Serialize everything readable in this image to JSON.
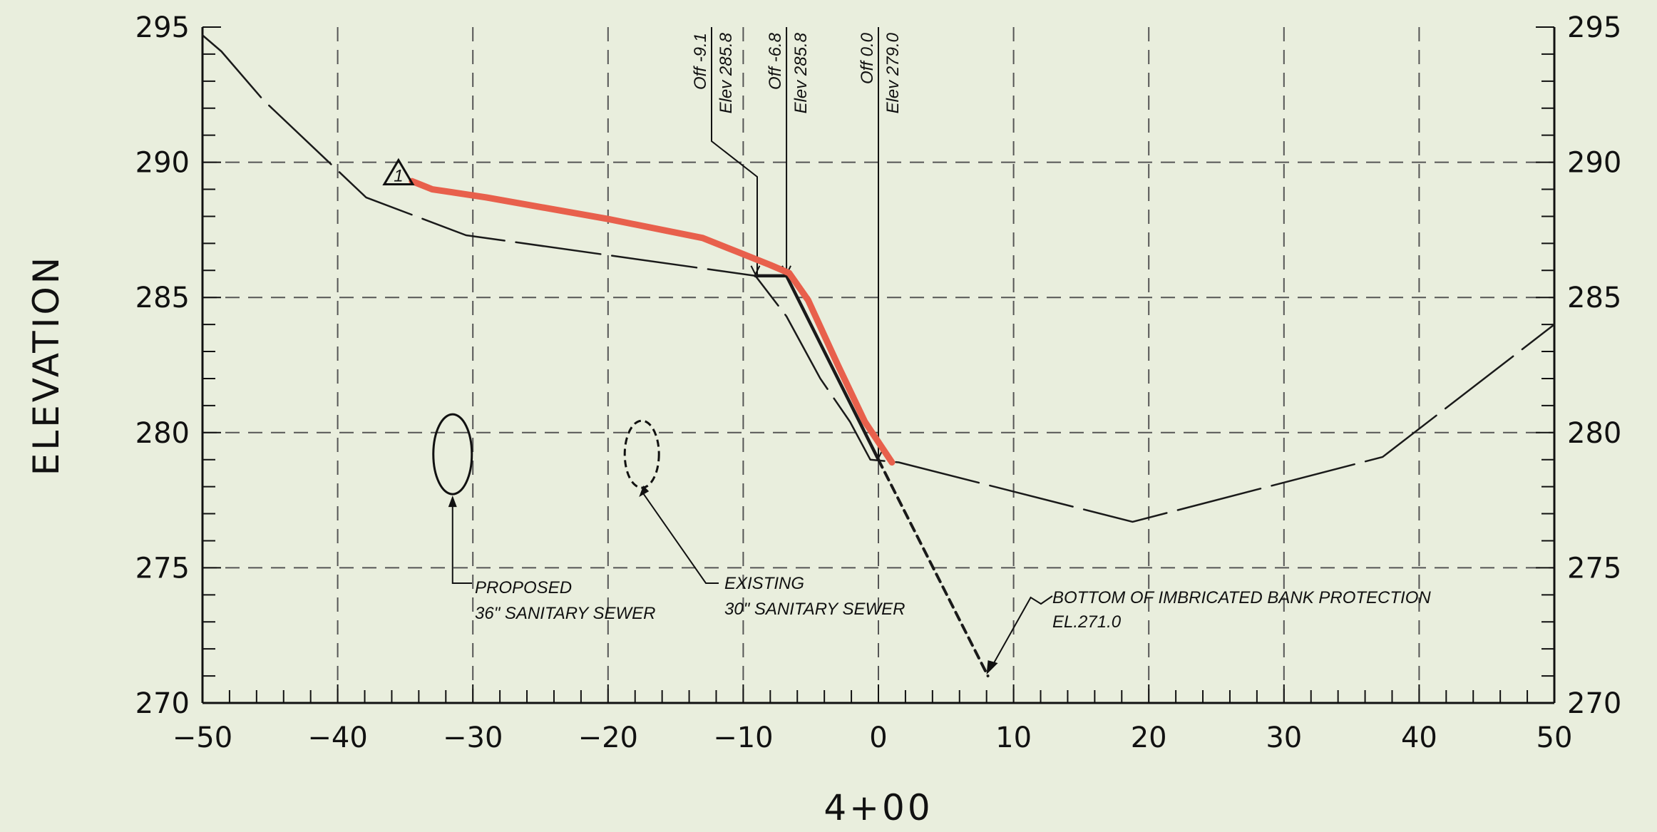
{
  "chart_data": {
    "type": "line",
    "title": "",
    "xlabel": "4+00",
    "ylabel": "ELEVATION",
    "xlim": [
      -50,
      50
    ],
    "ylim": [
      270,
      295
    ],
    "x_ticks": [
      -50,
      -40,
      -30,
      -20,
      -10,
      0,
      10,
      20,
      30,
      40,
      50
    ],
    "x_tick_labels": [
      "−50",
      "−40",
      "−30",
      "−20",
      "−10",
      "0",
      "10",
      "20",
      "30",
      "40",
      "50"
    ],
    "y_ticks": [
      270,
      275,
      280,
      285,
      290,
      295
    ],
    "grid": true,
    "series": [
      {
        "style": "long-dash",
        "color": "#1a1a1a",
        "x": [
          -50,
          -48.6,
          -45.5,
          -37.9,
          -30.5,
          -9.1,
          -6.8,
          -4.3,
          -2.1,
          -0.6,
          1.5,
          18.8,
          37.3,
          50
        ],
        "y": [
          294.7,
          294.1,
          292.3,
          288.7,
          287.3,
          285.8,
          284.3,
          282.0,
          280.4,
          279.0,
          278.9,
          276.7,
          279.1,
          284.0
        ]
      },
      {
        "style": "solid",
        "color": "#1a1a1a",
        "x": [
          -9.1,
          -6.8,
          0.0
        ],
        "y": [
          285.8,
          285.8,
          279.0
        ]
      },
      {
        "style": "short-dash",
        "color": "#1a1a1a",
        "x": [
          0.0,
          8.1
        ],
        "y": [
          279.0,
          271.0
        ]
      },
      {
        "style": "solid",
        "color": "#e8604c",
        "x": [
          -34.5,
          -33.0,
          -29.0,
          -20.0,
          -13.0,
          -10.5,
          -8.0,
          -6.6,
          -5.2,
          -3.0,
          -1.0,
          1.0
        ],
        "y": [
          289.3,
          289.0,
          288.7,
          287.9,
          287.2,
          286.7,
          286.2,
          285.9,
          284.9,
          282.5,
          280.4,
          278.9
        ]
      }
    ],
    "offsets": [
      {
        "off": "Off -9.1",
        "elev": "Elev 285.8",
        "x": -9.1,
        "y": 285.8
      },
      {
        "off": "Off -6.8",
        "elev": "Elev 285.8",
        "x": -6.8,
        "y": 285.8
      },
      {
        "off": "Off 0.0",
        "elev": "Elev 279.0",
        "x": 0.0,
        "y": 279.0
      }
    ],
    "annotations": {
      "proposed": {
        "line1": "PROPOSED",
        "line2": "36\" SANITARY SEWER",
        "center": [
          -31.5,
          279.2
        ]
      },
      "existing": {
        "line1": "EXISTING",
        "line2": "30\" SANITARY SEWER",
        "center": [
          -17.5,
          279.2
        ]
      },
      "bottom": {
        "line1": "BOTTOM OF IMBRICATED BANK PROTECTION",
        "line2": "EL.271.0",
        "point": [
          8.1,
          271.0
        ]
      },
      "revision_marker": {
        "symbol": "1",
        "at": [
          -35.5,
          289.5
        ]
      }
    }
  }
}
